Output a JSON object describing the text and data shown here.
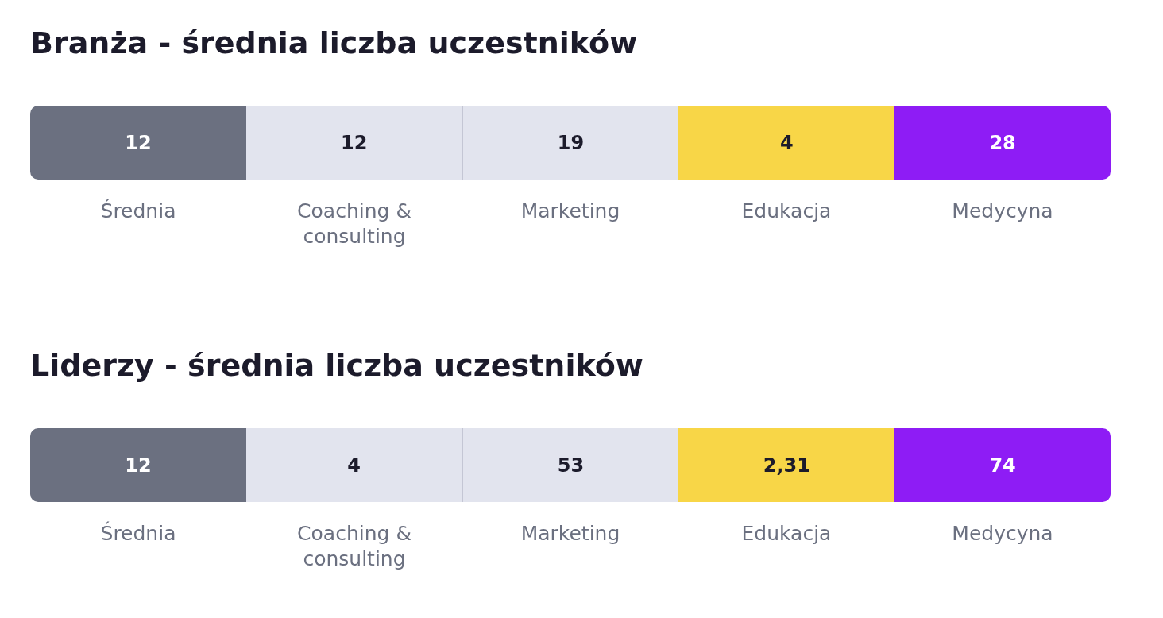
{
  "chart_data": [
    {
      "type": "other",
      "title": "Branża - średnia liczba uczestników",
      "categories": [
        "Średnia",
        "Coaching & consulting",
        "Marketing",
        "Edukacja",
        "Medycyna"
      ],
      "values": [
        12,
        12,
        19,
        4,
        28
      ],
      "data_labels": true,
      "colors": [
        "#6b7080",
        "#e2e4ee",
        "#e2e4ee",
        "#f8d647",
        "#8e1cf5"
      ]
    },
    {
      "type": "other",
      "title": "Liderzy - średnia liczba uczestników",
      "categories": [
        "Średnia",
        "Coaching & consulting",
        "Marketing",
        "Edukacja",
        "Medycyna"
      ],
      "values": [
        12,
        4,
        53,
        2.31,
        74
      ],
      "value_labels": [
        "12",
        "4",
        "53",
        "2,31",
        "74"
      ],
      "colors": [
        "#6b7080",
        "#e2e4ee",
        "#e2e4ee",
        "#f8d647",
        "#8e1cf5"
      ]
    }
  ]
}
